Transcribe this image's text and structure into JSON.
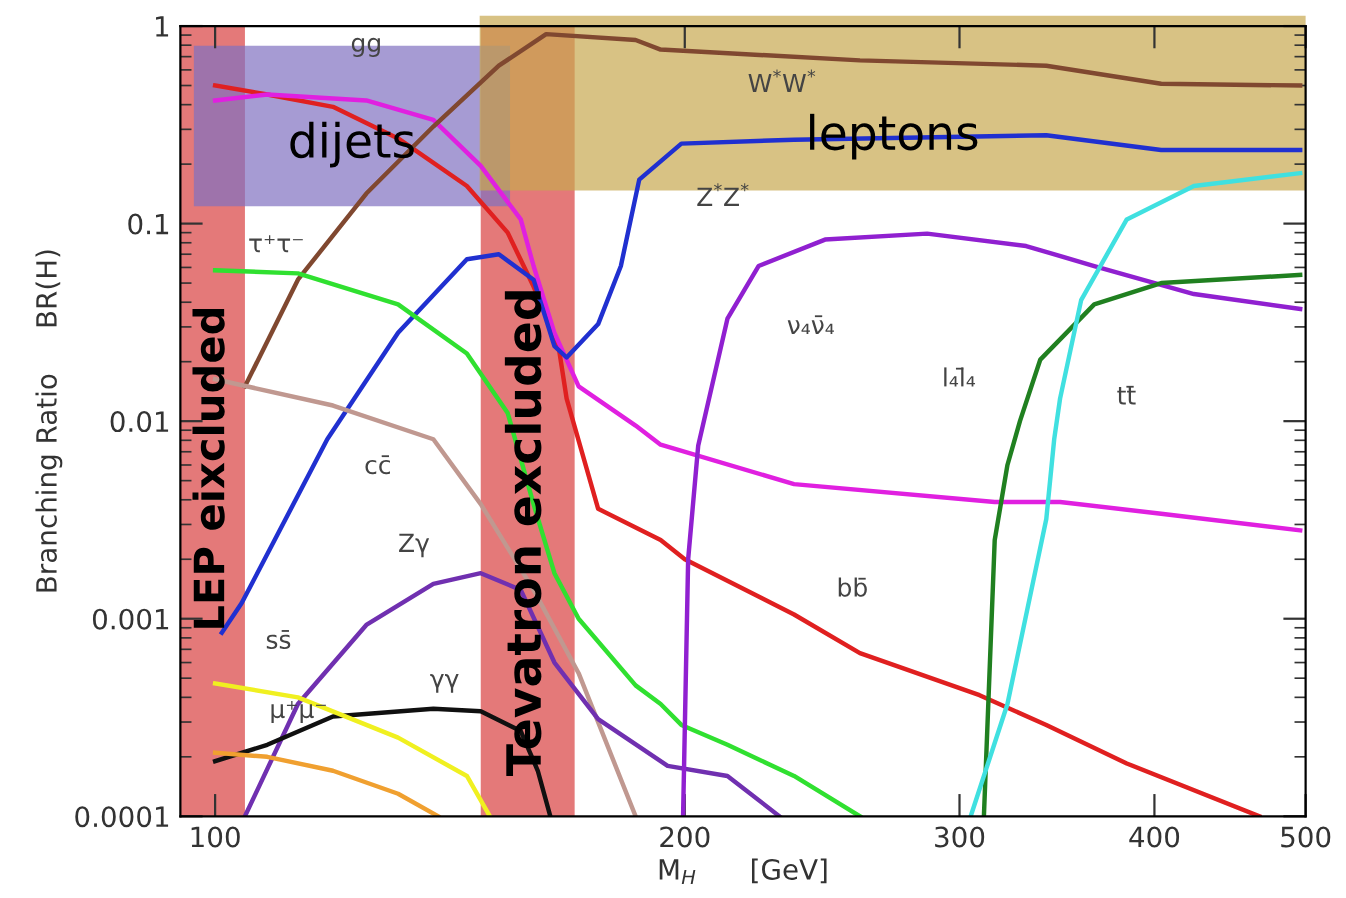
{
  "chart_data": {
    "type": "line",
    "log": "xy",
    "xlabel": "M$_{H}$      [GeV]",
    "ylabel": "Branching Ratio     BR(H)",
    "xlim": [
      95,
      500
    ],
    "ylim": [
      0.0001,
      1
    ],
    "xticks": [
      100,
      200,
      300,
      400,
      500
    ],
    "yticks": [
      0.0001,
      0.001,
      0.01,
      0.1,
      1
    ],
    "series": [
      {
        "color": "#e02020",
        "x": [
          100,
          108,
          119,
          131,
          145,
          154,
          160,
          166,
          168,
          176,
          193,
          200,
          235,
          259,
          309,
          341,
          384,
          467
        ],
        "values": [
          0.5,
          0.45,
          0.39,
          0.27,
          0.155,
          0.09,
          0.048,
          0.024,
          0.013,
          0.0036,
          0.0025,
          0.002,
          0.00105,
          0.00067,
          0.00041,
          0.00029,
          0.000185,
          0.0001
        ]
      },
      {
        "color": "#e020e0",
        "x": [
          100,
          108,
          125,
          138,
          148,
          157,
          160,
          165,
          171,
          186,
          193,
          235,
          316,
          348,
          404,
          496
        ],
        "values": [
          0.42,
          0.45,
          0.42,
          0.335,
          0.196,
          0.105,
          0.061,
          0.028,
          0.015,
          0.0095,
          0.0076,
          0.0048,
          0.0039,
          0.0039,
          0.0034,
          0.0028
        ]
      },
      {
        "color": "#804830",
        "x": [
          104.5,
          113,
          125,
          138,
          152,
          163,
          186,
          193,
          259,
          341,
          404,
          496
        ],
        "values": [
          0.015,
          0.052,
          0.142,
          0.31,
          0.63,
          0.91,
          0.85,
          0.76,
          0.67,
          0.63,
          0.51,
          0.5
        ]
      },
      {
        "color": "#2030d0",
        "x": [
          101,
          104,
          118,
          131,
          145,
          152,
          160,
          165,
          168,
          176,
          182,
          187,
          199,
          235,
          341,
          404,
          496
        ],
        "values": [
          0.00085,
          0.0012,
          0.0081,
          0.028,
          0.066,
          0.07,
          0.052,
          0.024,
          0.021,
          0.031,
          0.061,
          0.167,
          0.254,
          0.266,
          0.28,
          0.236,
          0.236
        ]
      },
      {
        "color": "#30e030",
        "x": [
          100,
          113,
          131,
          145,
          154,
          160,
          165,
          171,
          186,
          193,
          199,
          213,
          235,
          259
        ],
        "values": [
          0.058,
          0.056,
          0.039,
          0.022,
          0.011,
          0.0038,
          0.0017,
          0.001,
          0.00046,
          0.00037,
          0.00029,
          0.00023,
          0.00016,
          0.0001
        ]
      },
      {
        "color": "#c09890",
        "x": [
          100,
          119,
          138,
          148,
          160,
          171,
          186
        ],
        "values": [
          0.0163,
          0.012,
          0.0081,
          0.0038,
          0.0014,
          0.00053,
          0.0001
        ]
      },
      {
        "color": "#7030b0",
        "x": [
          104.5,
          113,
          125,
          138,
          148,
          157,
          165,
          176,
          195,
          213,
          230
        ],
        "values": [
          0.0001,
          0.00037,
          0.00093,
          0.0015,
          0.0017,
          0.0014,
          0.0006,
          0.00031,
          0.00018,
          0.00016,
          0.0001
        ]
      },
      {
        "color": "#101010",
        "x": [
          100,
          108,
          119,
          138,
          148,
          157,
          161,
          164
        ],
        "values": [
          0.00019,
          0.00023,
          0.00032,
          0.00035,
          0.00034,
          0.00027,
          0.00017,
          0.0001
        ]
      },
      {
        "color": "#f0f020",
        "x": [
          100,
          113,
          131,
          145,
          150
        ],
        "values": [
          0.00047,
          0.0004,
          0.00025,
          0.00016,
          0.0001
        ]
      },
      {
        "color": "#f0a030",
        "x": [
          100,
          108,
          119,
          131,
          139
        ],
        "values": [
          0.00021,
          0.0002,
          0.00017,
          0.00013,
          0.0001
        ]
      },
      {
        "color": "#9020d0",
        "x": [
          199.5,
          201,
          204,
          213,
          223,
          246,
          286,
          331,
          366,
          424,
          496
        ],
        "values": [
          0.0001,
          0.002,
          0.0075,
          0.033,
          0.061,
          0.083,
          0.089,
          0.077,
          0.061,
          0.044,
          0.037
        ]
      },
      {
        "color": "#208020",
        "x": [
          311,
          316,
          322,
          328,
          338,
          366,
          404,
          496
        ],
        "values": [
          0.0001,
          0.0025,
          0.006,
          0.01,
          0.0205,
          0.039,
          0.05,
          0.055
        ]
      },
      {
        "color": "#40e0e0",
        "x": [
          305,
          322,
          341,
          345,
          348,
          359,
          384,
          424,
          496
        ],
        "values": [
          0.0001,
          0.00037,
          0.0032,
          0.0081,
          0.013,
          0.041,
          0.105,
          0.155,
          0.18
        ]
      }
    ],
    "bands": [
      {
        "axis": "x",
        "from": 95,
        "to": 104.5,
        "label": "LEP eixcluded",
        "color": "#d84040"
      },
      {
        "axis": "x",
        "from": 148,
        "to": 170,
        "label": "Tevatron excluded",
        "color": "#d84040"
      }
    ],
    "annotations": [
      {
        "text": "gg",
        "x": 125,
        "y": 0.42
      },
      {
        "text": "τ⁺τ⁻",
        "x": 100,
        "y": 0.058
      },
      {
        "text": "cc̄",
        "x": 138,
        "y": 0.0081
      },
      {
        "text": "Zγ",
        "x": 138,
        "y": 0.0015
      },
      {
        "text": "γγ",
        "x": 148,
        "y": 0.00034
      },
      {
        "text": "ss̄",
        "x": 113,
        "y": 0.0004
      },
      {
        "text": "μ⁺μ⁻",
        "x": 100,
        "y": 0.00021
      },
      {
        "text": "bb̄",
        "x": 235,
        "y": 0.00105
      },
      {
        "text": "W$^{*}$W$^{*}$",
        "x": 259,
        "y": 0.67
      },
      {
        "text": "Z$^{*}$Z$^{*}$",
        "x": 199,
        "y": 0.254
      },
      {
        "text": "ν₄ν̄₄",
        "x": 213,
        "y": 0.033
      },
      {
        "text": "l₄l̄₄",
        "x": 328,
        "y": 0.01
      },
      {
        "text": "tt̄",
        "x": 345,
        "y": 0.0081
      },
      "dijets",
      "leptons"
    ]
  }
}
